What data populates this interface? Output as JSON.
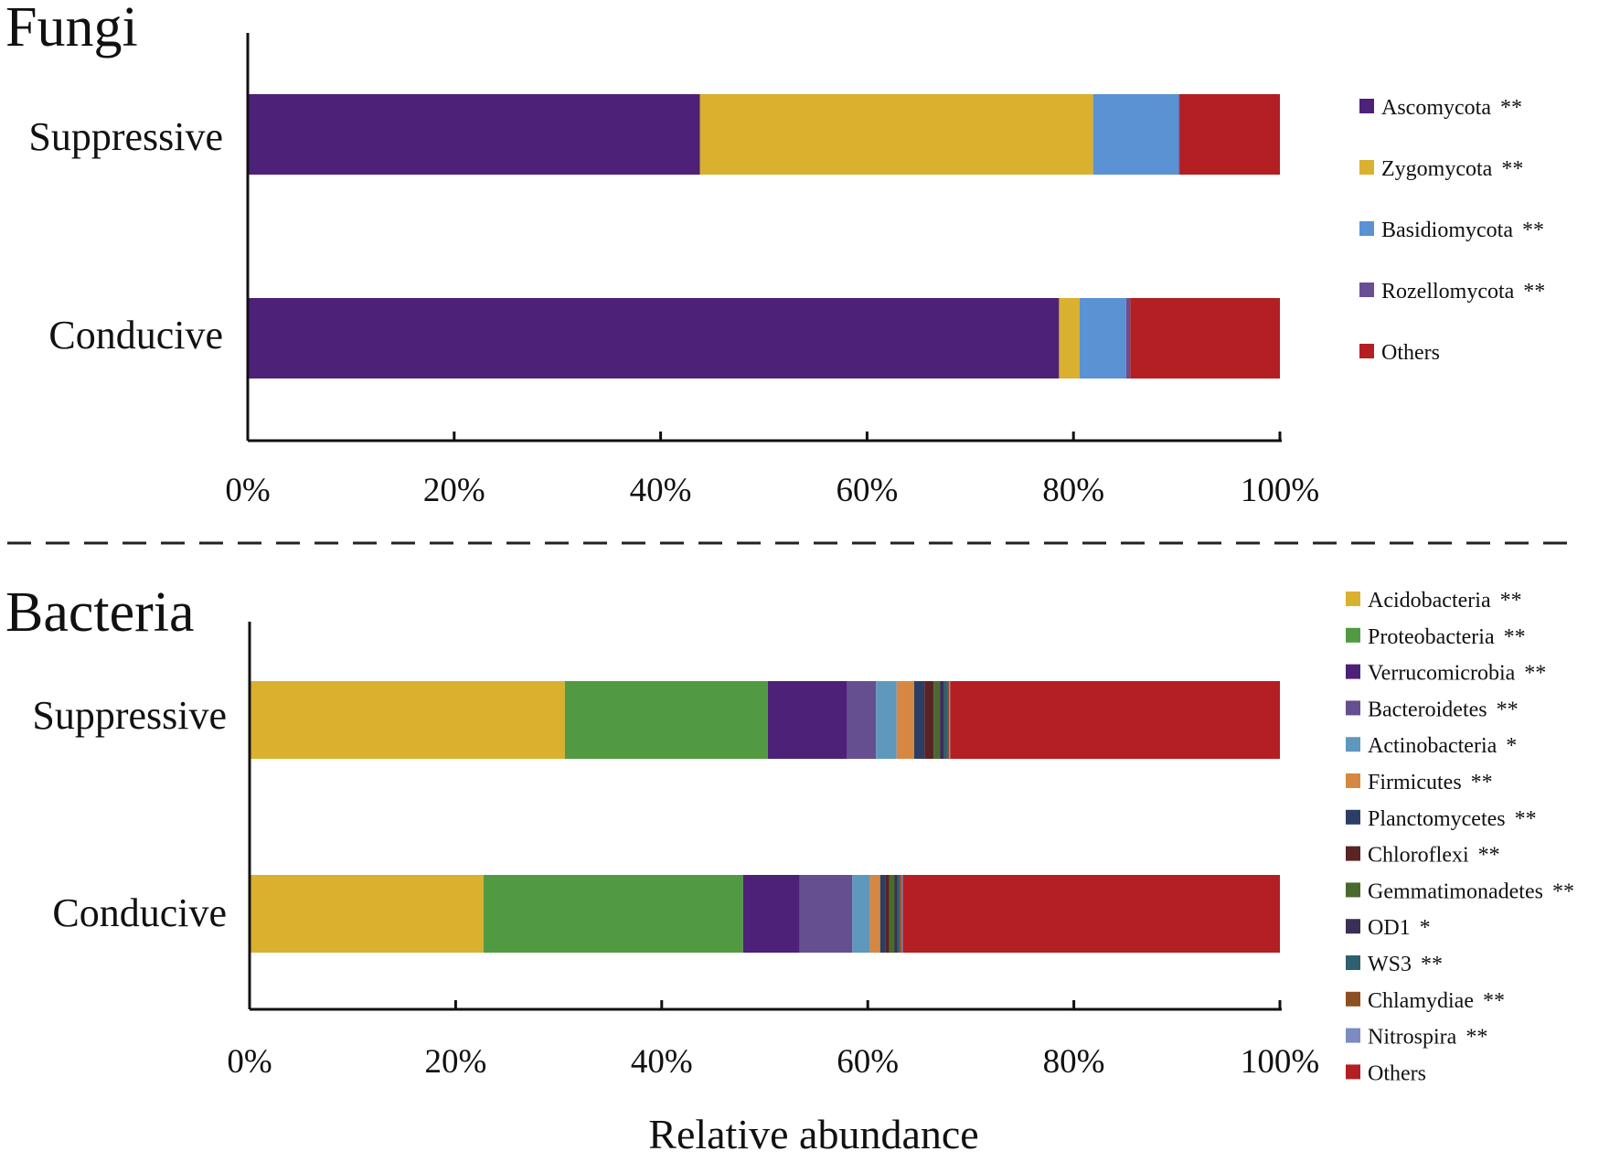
{
  "xlabel": "Relative abundance",
  "chart_data": [
    {
      "type": "bar",
      "orientation": "horizontal",
      "stacked": true,
      "title": "Fungi",
      "categories": [
        "Suppressive",
        "Conducive"
      ],
      "xlim": [
        0,
        100
      ],
      "xticks": [
        "0%",
        "20%",
        "40%",
        "60%",
        "80%",
        "100%"
      ],
      "legend_position": "right",
      "series": [
        {
          "name": "Ascomycota",
          "mark": "**",
          "color": "#4e2178",
          "values": [
            43.8,
            78.6
          ]
        },
        {
          "name": "Zygomycota",
          "mark": "**",
          "color": "#dab02f",
          "values": [
            38.1,
            2.0
          ]
        },
        {
          "name": "Basidiomycota",
          "mark": "**",
          "color": "#5a92d3",
          "values": [
            8.3,
            4.5
          ]
        },
        {
          "name": "Rozellomycota",
          "mark": "**",
          "color": "#6a4e94",
          "values": [
            0.1,
            0.4
          ]
        },
        {
          "name": "Others",
          "mark": "",
          "color": "#b41f23",
          "values": [
            9.7,
            14.5
          ]
        }
      ]
    },
    {
      "type": "bar",
      "orientation": "horizontal",
      "stacked": true,
      "title": "Bacteria",
      "categories": [
        "Suppressive",
        "Conducive"
      ],
      "xlim": [
        0,
        100
      ],
      "xticks": [
        "0%",
        "20%",
        "40%",
        "60%",
        "80%",
        "100%"
      ],
      "legend_position": "right",
      "series": [
        {
          "name": "Acidobacteria",
          "mark": "**",
          "color": "#dab02f",
          "values": [
            30.6,
            22.7
          ]
        },
        {
          "name": "Proteobacteria",
          "mark": "**",
          "color": "#519a42",
          "values": [
            19.7,
            25.2
          ]
        },
        {
          "name": "Verrucomicrobia",
          "mark": "**",
          "color": "#4e2178",
          "values": [
            7.7,
            5.5
          ]
        },
        {
          "name": "Bacteroidetes",
          "mark": "**",
          "color": "#654f90",
          "values": [
            2.8,
            5.1
          ]
        },
        {
          "name": "Actinobacteria",
          "mark": "*",
          "color": "#5f98bd",
          "values": [
            2.0,
            1.7
          ]
        },
        {
          "name": "Firmicutes",
          "mark": "**",
          "color": "#d68842",
          "values": [
            1.7,
            1.0
          ]
        },
        {
          "name": "Planctomycetes",
          "mark": "**",
          "color": "#2c3e66",
          "values": [
            1.0,
            0.5
          ]
        },
        {
          "name": "Chloroflexi",
          "mark": "**",
          "color": "#5a2424",
          "values": [
            0.9,
            0.4
          ]
        },
        {
          "name": "Gemmatimonadetes",
          "mark": "**",
          "color": "#4a6a2c",
          "values": [
            0.6,
            0.5
          ]
        },
        {
          "name": "OD1",
          "mark": "*",
          "color": "#3b2f57",
          "values": [
            0.4,
            0.3
          ]
        },
        {
          "name": "WS3",
          "mark": "**",
          "color": "#2e6070",
          "values": [
            0.3,
            0.2
          ]
        },
        {
          "name": "Chlamydiae",
          "mark": "**",
          "color": "#8b4f23",
          "values": [
            0.2,
            0.2
          ]
        },
        {
          "name": "Nitrospira",
          "mark": "**",
          "color": "#7c8bc4",
          "values": [
            0.1,
            0.1
          ]
        },
        {
          "name": "Others",
          "mark": "",
          "color": "#b41f23",
          "values": [
            32.0,
            36.6
          ]
        }
      ]
    }
  ]
}
